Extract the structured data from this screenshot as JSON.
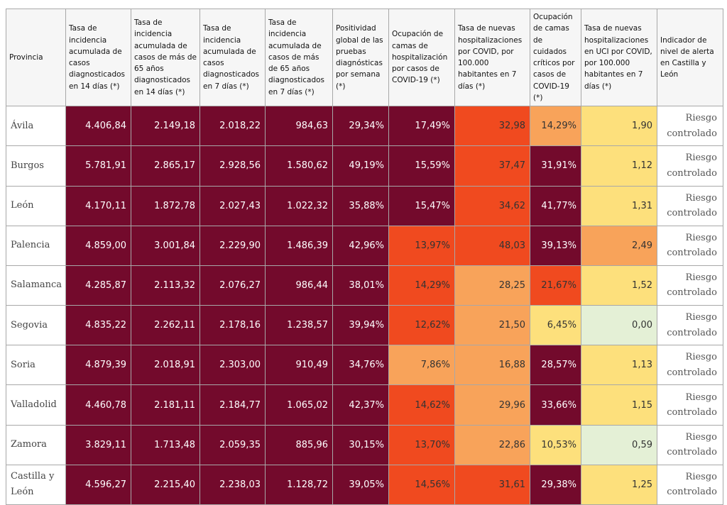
{
  "table": {
    "header": [
      "Provincia",
      "Tasa de incidencia acumulada de casos diagnosticados en 14 días (*)",
      "Tasa de incidencia acumulada de casos de más de 65 años diagnosticados en 14 días (*)",
      "Tasa de incidencia acumulada de casos diagnosticados en 7 días (*)",
      "Tasa de incidencia acumulada de casos de más de 65 años diagnosticados en 7 días (*)",
      "Positividad global de las pruebas diagnósticas por semana (*)",
      "Ocupación de camas de hospitalización por casos de COVID-19 (*)",
      "Tasa de nuevas hospitalizaciones por COVID, por 100.000 habitantes en 7 días (*)",
      "Ocupación de camas de cuidados críticos por casos de COVID-19 (*)",
      "Tasa de nuevas hospitalizaciones en UCI por COVID, por 100.000 habitantes en 7 días (*)",
      "Indicador de nivel de alerta en Castilla y León"
    ],
    "rows": [
      [
        "Ávila",
        "4.406,84",
        "2.149,18",
        "2.018,22",
        "984,63",
        "29,34%",
        "17,49%",
        "32,98",
        "14,29%",
        "1,90",
        "Riesgo controlado"
      ],
      [
        "Burgos",
        "5.781,91",
        "2.865,17",
        "2.928,56",
        "1.580,62",
        "49,19%",
        "15,59%",
        "37,47",
        "31,91%",
        "1,12",
        "Riesgo controlado"
      ],
      [
        "León",
        "4.170,11",
        "1.872,78",
        "2.027,43",
        "1.022,32",
        "35,88%",
        "15,47%",
        "34,62",
        "41,77%",
        "1,31",
        "Riesgo controlado"
      ],
      [
        "Palencia",
        "4.859,00",
        "3.001,84",
        "2.229,90",
        "1.486,39",
        "42,96%",
        "13,97%",
        "48,03",
        "39,13%",
        "2,49",
        "Riesgo controlado"
      ],
      [
        "Salamanca",
        "4.285,87",
        "2.113,32",
        "2.076,27",
        "986,44",
        "38,01%",
        "14,29%",
        "28,25",
        "21,67%",
        "1,52",
        "Riesgo controlado"
      ],
      [
        "Segovia",
        "4.835,22",
        "2.262,11",
        "2.178,16",
        "1.238,57",
        "39,94%",
        "12,62%",
        "21,50",
        "6,45%",
        "0,00",
        "Riesgo controlado"
      ],
      [
        "Soria",
        "4.879,39",
        "2.018,91",
        "2.303,00",
        "910,49",
        "34,76%",
        "7,86%",
        "16,88",
        "28,57%",
        "1,13",
        "Riesgo controlado"
      ],
      [
        "Valladolid",
        "4.460,78",
        "2.181,11",
        "2.184,77",
        "1.065,02",
        "42,37%",
        "14,62%",
        "29,96",
        "33,66%",
        "1,15",
        "Riesgo controlado"
      ],
      [
        "Zamora",
        "3.829,11",
        "1.713,48",
        "2.059,35",
        "885,96",
        "30,15%",
        "13,70%",
        "22,86",
        "10,53%",
        "0,59",
        "Riesgo controlado"
      ],
      [
        "Castilla y León",
        "4.596,27",
        "2.215,40",
        "2.238,03",
        "1.128,72",
        "39,05%",
        "14,56%",
        "31,61",
        "29,38%",
        "1,25",
        "Riesgo controlado"
      ]
    ],
    "cell_colors": [
      [
        "#ffffff",
        "#730a2c",
        "#730a2c",
        "#730a2c",
        "#730a2c",
        "#730a2c",
        "#730a2c",
        "#f04a1f",
        "#f8a35a",
        "#fde07c",
        "#ffffff"
      ],
      [
        "#ffffff",
        "#730a2c",
        "#730a2c",
        "#730a2c",
        "#730a2c",
        "#730a2c",
        "#730a2c",
        "#f04a1f",
        "#730a2c",
        "#fde07c",
        "#ffffff"
      ],
      [
        "#ffffff",
        "#730a2c",
        "#730a2c",
        "#730a2c",
        "#730a2c",
        "#730a2c",
        "#730a2c",
        "#f04a1f",
        "#730a2c",
        "#fde07c",
        "#ffffff"
      ],
      [
        "#ffffff",
        "#730a2c",
        "#730a2c",
        "#730a2c",
        "#730a2c",
        "#730a2c",
        "#f04a1f",
        "#f04a1f",
        "#730a2c",
        "#f8a35a",
        "#ffffff"
      ],
      [
        "#ffffff",
        "#730a2c",
        "#730a2c",
        "#730a2c",
        "#730a2c",
        "#730a2c",
        "#f04a1f",
        "#f8a35a",
        "#f04a1f",
        "#fde07c",
        "#ffffff"
      ],
      [
        "#ffffff",
        "#730a2c",
        "#730a2c",
        "#730a2c",
        "#730a2c",
        "#730a2c",
        "#f04a1f",
        "#f8a35a",
        "#fde07c",
        "#e4f0d6",
        "#ffffff"
      ],
      [
        "#ffffff",
        "#730a2c",
        "#730a2c",
        "#730a2c",
        "#730a2c",
        "#730a2c",
        "#f8a35a",
        "#f8a35a",
        "#730a2c",
        "#fde07c",
        "#ffffff"
      ],
      [
        "#ffffff",
        "#730a2c",
        "#730a2c",
        "#730a2c",
        "#730a2c",
        "#730a2c",
        "#f04a1f",
        "#f8a35a",
        "#730a2c",
        "#fde07c",
        "#ffffff"
      ],
      [
        "#ffffff",
        "#730a2c",
        "#730a2c",
        "#730a2c",
        "#730a2c",
        "#730a2c",
        "#f04a1f",
        "#f8a35a",
        "#fde07c",
        "#e4f0d6",
        "#ffffff"
      ],
      [
        "#ffffff",
        "#730a2c",
        "#730a2c",
        "#730a2c",
        "#730a2c",
        "#730a2c",
        "#f04a1f",
        "#f04a1f",
        "#730a2c",
        "#fde07c",
        "#ffffff"
      ]
    ]
  }
}
